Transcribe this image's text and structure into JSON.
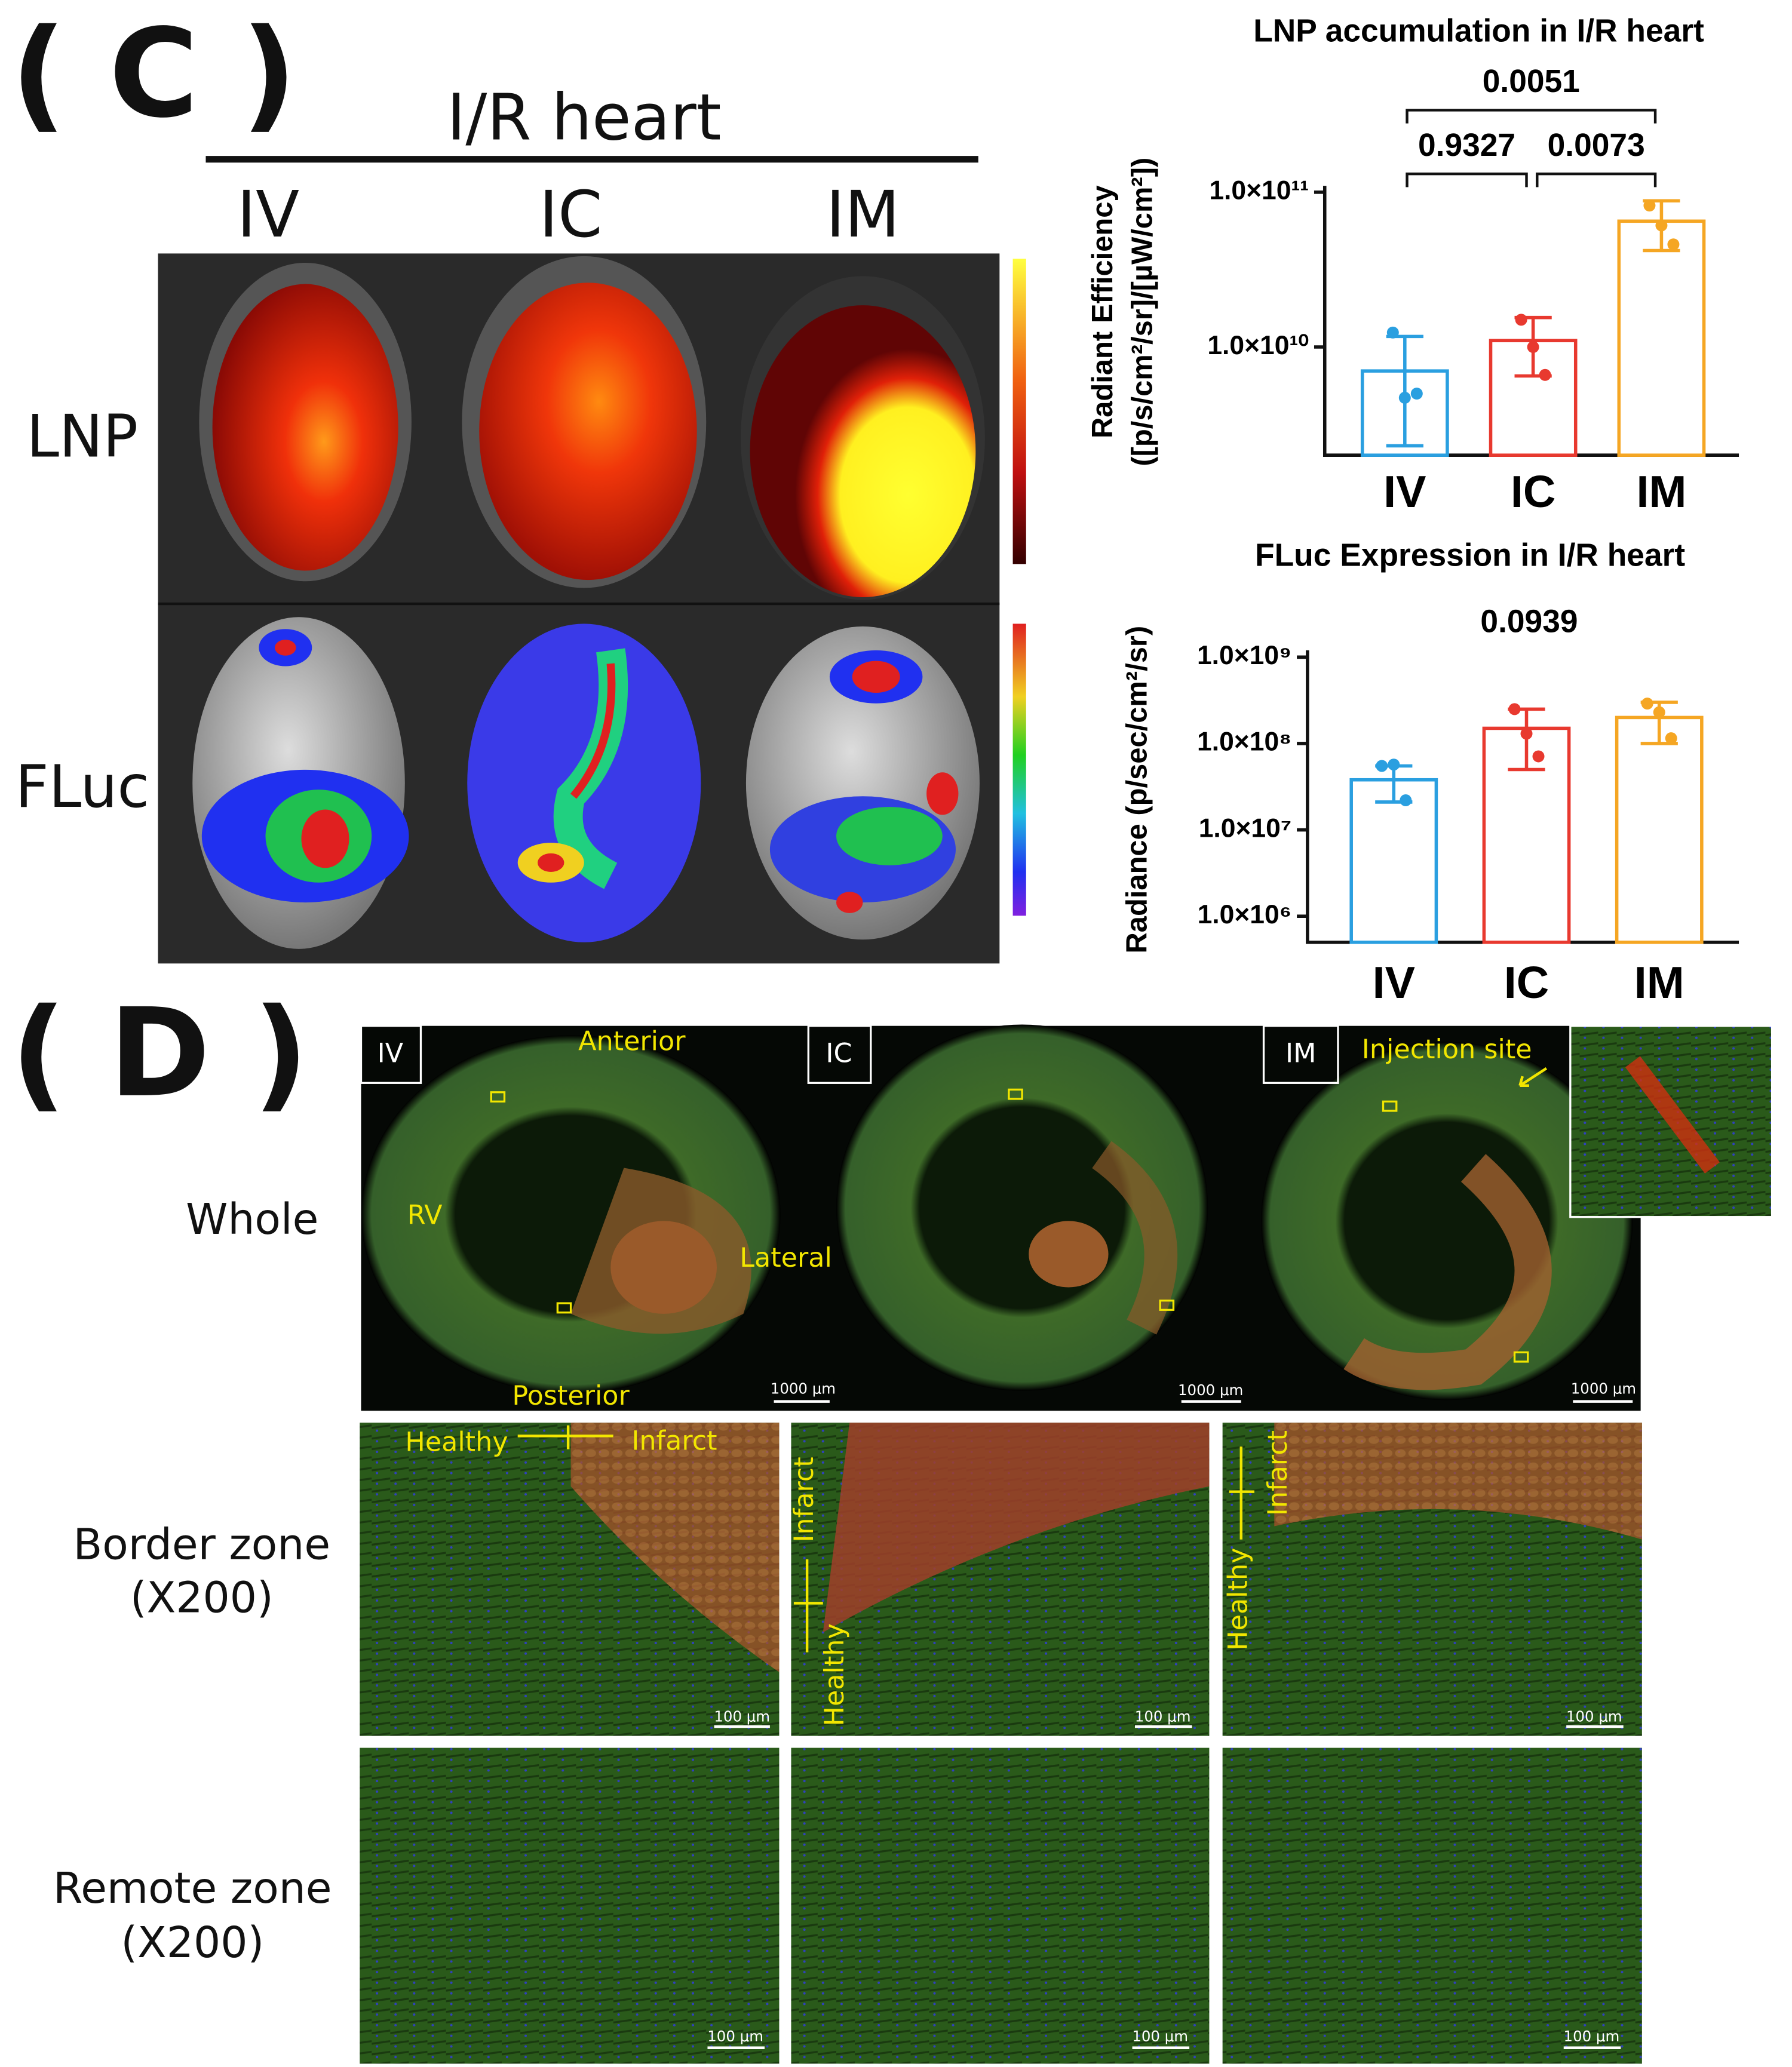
{
  "panel_c": {
    "label": "( C )",
    "group": "I/R heart",
    "columns": [
      "IV",
      "IC",
      "IM"
    ],
    "rows": [
      "LNP",
      "FLuc"
    ]
  },
  "chart_data": [
    {
      "type": "bar",
      "title": "LNP accumulation in I/R heart",
      "ylabel": [
        "Radiant Efficiency",
        "([p/s/cm²/sr]/[µW/cm²])"
      ],
      "categories": [
        "IV",
        "IC",
        "IM"
      ],
      "colors": [
        "#2a9fe0",
        "#e8392f",
        "#f5a623"
      ],
      "values": [
        7000000000.0,
        11000000000.0,
        65000000000.0
      ],
      "errors": [
        4700000000.0,
        4500000000.0,
        23000000000.0
      ],
      "points": [
        [
          12400000000.0,
          4700000000.0,
          5000000000.0
        ],
        [
          15000000000.0,
          10000000000.0,
          6600000000.0
        ],
        [
          82000000000.0,
          61000000000.0,
          46000000000.0
        ]
      ],
      "log_scale": true,
      "ylim": [
        2000000000.0,
        110000000000.0
      ],
      "yticks": [
        {
          "value": 10000000000.0,
          "label": "1.0×10¹⁰"
        },
        {
          "value": 100000000000.0,
          "label": "1.0×10¹¹"
        }
      ],
      "annotations": [
        "0.0051",
        "0.9327",
        "0.0073"
      ]
    },
    {
      "type": "bar",
      "title": "FLuc Expression in I/R heart",
      "ylabel": [
        "Radiance (p/sec/cm²/sr)"
      ],
      "categories": [
        "IV",
        "IC",
        "IM"
      ],
      "colors": [
        "#2a9fe0",
        "#e8392f",
        "#f5a623"
      ],
      "values": [
        38000000.0,
        150000000.0,
        200000000.0
      ],
      "errors": [
        17000000.0,
        100000000.0,
        100000000.0
      ],
      "points": [
        [
          55000000.0,
          57000000.0,
          22000000.0
        ],
        [
          250000000.0,
          130000000.0,
          71000000.0
        ],
        [
          290000000.0,
          230000000.0,
          115000000.0
        ]
      ],
      "log_scale": true,
      "ylim": [
        500000.0,
        1200000000.0
      ],
      "yticks": [
        {
          "value": 1000000.0,
          "label": "1.0×10⁶"
        },
        {
          "value": 10000000.0,
          "label": "1.0×10⁷"
        },
        {
          "value": 100000000.0,
          "label": "1.0×10⁸"
        },
        {
          "value": 1000000000.0,
          "label": "1.0×10⁹"
        }
      ],
      "annotations": [
        "0.0939"
      ]
    }
  ],
  "panel_d": {
    "label": "( D )",
    "columns": [
      "IV",
      "IC",
      "IM"
    ],
    "rows": [
      [
        "Whole"
      ],
      [
        "Border zone",
        "(X200)"
      ],
      [
        "Remote zone",
        "(X200)"
      ]
    ],
    "regions": {
      "anterior": "Anterior",
      "rv": "RV",
      "lateral": "Lateral",
      "posterior": "Posterior",
      "injection_site": "Injection site"
    },
    "zones": {
      "healthy": "Healthy",
      "infarct": "Infarct"
    },
    "scale_bars": {
      "whole": "1000 μm",
      "zoom": "100 μm"
    }
  }
}
